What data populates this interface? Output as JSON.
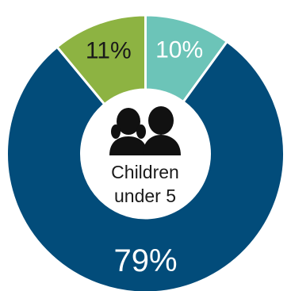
{
  "chart_data": {
    "type": "pie",
    "categories": [
      "10%",
      "79%",
      "11%"
    ],
    "values": [
      10,
      79,
      11
    ],
    "labels": [
      "10%",
      "79%",
      "11%"
    ],
    "colors": [
      "#6cc4b8",
      "#024c7a",
      "#8db342"
    ],
    "label_colors": [
      "#ffffff",
      "#ffffff",
      "#1a1a1a"
    ],
    "center_text": [
      "Children",
      "under 5"
    ],
    "center_icon": "two-children-silhouette-icon"
  }
}
